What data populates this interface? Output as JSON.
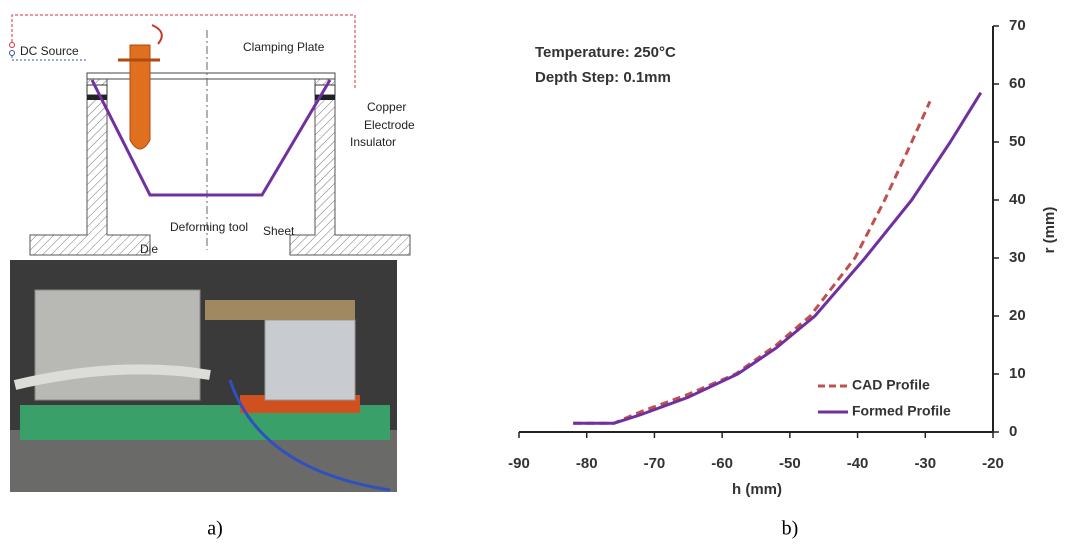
{
  "diagram": {
    "labels": {
      "dc_source": "DC Source",
      "clamping_plate": "Clamping Plate",
      "copper": "Copper",
      "electrode": "Electrode",
      "insulator": "Insulator",
      "deforming_tool": "Deforming tool",
      "sheet": "Sheet",
      "die": "Die"
    }
  },
  "captions": [
    "a)",
    "b)"
  ],
  "chart_data": {
    "type": "line",
    "annotations": [
      "Temperature: 250°C",
      "Depth Step: 0.1mm"
    ],
    "x_label": "h (mm)",
    "y_label": "r (mm)",
    "xlim": [
      -90,
      -20
    ],
    "xticks": [
      -90,
      -80,
      -70,
      -60,
      -50,
      -40,
      -30,
      -20
    ],
    "ylim": [
      0,
      70
    ],
    "yticks": [
      0,
      10,
      20,
      30,
      40,
      50,
      60,
      70
    ],
    "legend": "lower-right",
    "series": [
      {
        "name": "CAD Profile",
        "color": "#c0504d",
        "dashed": true,
        "x": [
          -82,
          -76,
          -72,
          -65,
          -58,
          -52,
          -47,
          -40.4,
          -36,
          -32,
          -29.3
        ],
        "values": [
          1.5,
          1.5,
          3.5,
          6.5,
          10,
          15,
          20,
          30,
          40,
          50,
          57
        ]
      },
      {
        "name": "Formed Profile",
        "color": "#7030a0",
        "dashed": false,
        "x": [
          -82,
          -76,
          -72,
          -65,
          -57.7,
          -52,
          -46.3,
          -38.9,
          -32,
          -26.3,
          -21.8
        ],
        "values": [
          1.5,
          1.5,
          3,
          6,
          10,
          14.5,
          20,
          30,
          40,
          50,
          58.5
        ]
      }
    ]
  }
}
